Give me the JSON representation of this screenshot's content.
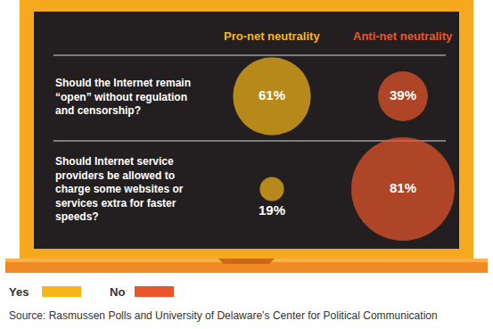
{
  "chart_data": {
    "type": "bubble",
    "columns": [
      "Pro-net neutrality",
      "Anti-net neutrality"
    ],
    "categories": [
      "Should the Internet remain “open” without regulation and censorship?",
      "Should Internet service providers be allowed to charge some websites or services extra for faster speeds?"
    ],
    "series": [
      {
        "name": "Yes",
        "color": "#f7b718",
        "values": [
          61,
          19
        ],
        "value_labels": [
          "61%",
          "19%"
        ]
      },
      {
        "name": "No",
        "color": "#e9562b",
        "values": [
          39,
          81
        ],
        "value_labels": [
          "39%",
          "81%"
        ]
      }
    ],
    "data_labels": true,
    "tick_labels": false,
    "legend": "bottom left",
    "source": "Source: Rasmussen Polls and University of Delaware’s Center for Political Communication"
  }
}
